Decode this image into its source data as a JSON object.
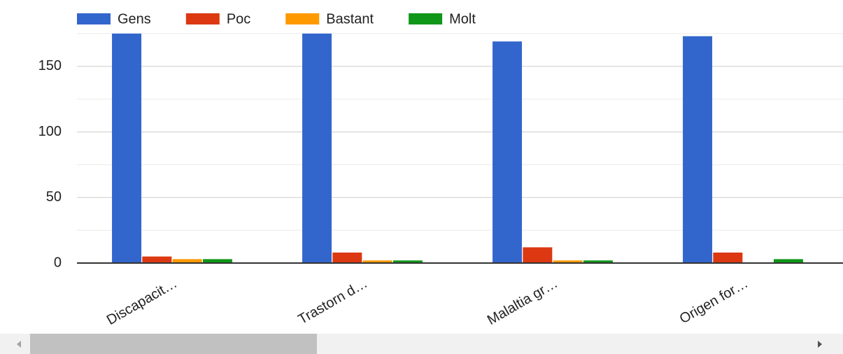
{
  "chart_data": {
    "type": "bar",
    "categories": [
      "Discapacit…",
      "Trastorn d…",
      "Malaltia gr…",
      "Origen for…"
    ],
    "series": [
      {
        "name": "Gens",
        "color": "#3366cc",
        "values": [
          176,
          176,
          169,
          173
        ]
      },
      {
        "name": "Poc",
        "color": "#dc3912",
        "values": [
          5,
          8,
          12,
          8
        ]
      },
      {
        "name": "Bastant",
        "color": "#ff9900",
        "values": [
          3,
          2,
          2,
          0
        ]
      },
      {
        "name": "Molt",
        "color": "#109618",
        "values": [
          3,
          2,
          2,
          3
        ]
      }
    ],
    "ylim": [
      0,
      175
    ],
    "yticks": [
      0,
      50,
      100,
      150
    ],
    "minor_yticks": [
      25,
      75,
      125,
      175
    ],
    "grid": true,
    "legend": "top"
  }
}
